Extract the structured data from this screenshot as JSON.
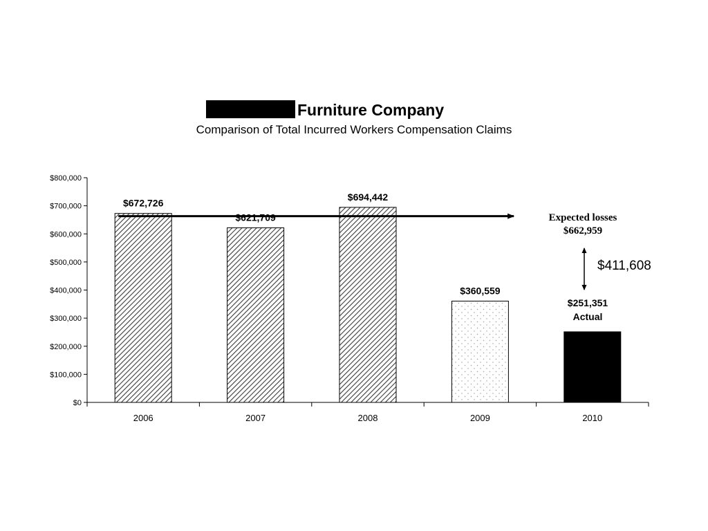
{
  "header": {
    "title": "Furniture Company",
    "subtitle": "Comparison of Total Incurred Workers Compensation Claims"
  },
  "chart_data": {
    "type": "bar",
    "categories": [
      "2006",
      "2007",
      "2008",
      "2009",
      "2010"
    ],
    "values": [
      672726,
      621709,
      694442,
      360559,
      251351
    ],
    "value_labels": [
      "$672,726",
      "$621,709",
      "$694,442",
      "$360,559",
      "$251,351"
    ],
    "bar_fills": [
      "hatched",
      "hatched",
      "hatched",
      "dotted",
      "solid"
    ],
    "ylim": [
      0,
      800000
    ],
    "y_ticks": [
      0,
      100000,
      200000,
      300000,
      400000,
      500000,
      600000,
      700000,
      800000
    ],
    "y_tick_labels": [
      "$0",
      "$100,000",
      "$200,000",
      "$300,000",
      "$400,000",
      "$500,000",
      "$600,000",
      "$700,000",
      "$800,000"
    ],
    "grid": false,
    "xlabel": "",
    "ylabel": "",
    "reference_line": {
      "value": 662959
    },
    "annotations": {
      "expected_label": "Expected losses",
      "expected_value": "$662,959",
      "difference": "$411,608",
      "actual_label": "Actual"
    }
  },
  "colors": {
    "bar_edge": "#000000",
    "solid_bar": "#000000",
    "hatch": "#444444",
    "text": "#000000"
  }
}
